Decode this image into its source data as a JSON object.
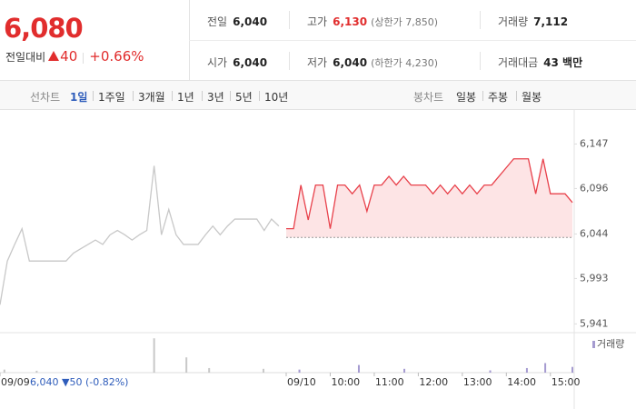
{
  "header": {
    "price": "6,080",
    "change_label": "전일대비",
    "change": "40",
    "change_rate": "+0.66%"
  },
  "stats": [
    [
      {
        "label": "전일",
        "value": "6,040"
      },
      {
        "label": "고가",
        "value": "6,130",
        "extra": "(상한가 7,850)"
      },
      {
        "label": "거래량",
        "value": "7,112"
      }
    ],
    [
      {
        "label": "시가",
        "value": "6,040"
      },
      {
        "label": "저가",
        "value": "6,040",
        "extra": "(하한가 4,230)"
      },
      {
        "label": "거래대금",
        "value": "43 백만"
      }
    ]
  ],
  "tabs": {
    "line_label": "선차트",
    "line_periods": [
      "1일",
      "1주일",
      "3개월",
      "1년",
      "3년",
      "5년",
      "10년"
    ],
    "selected": 0,
    "candle_label": "봉차트",
    "candle_periods": [
      "일봉",
      "주봉",
      "월봉"
    ]
  },
  "chart_data": {
    "type": "line",
    "series": [
      {
        "color": "#c8c8c8",
        "x": [
          0,
          10,
          20,
          30,
          40,
          50,
          60,
          70,
          80,
          90,
          100,
          110,
          120,
          130,
          140,
          150,
          160,
          170,
          180,
          190,
          200,
          210,
          220,
          230,
          240,
          250,
          260,
          270,
          280,
          290,
          300,
          310,
          320,
          330,
          340,
          350,
          360,
          370,
          380
        ],
        "values": [
          5963,
          6013,
          6032,
          6050,
          6013,
          6013,
          6013,
          6013,
          6013,
          6013,
          6022,
          6027,
          6032,
          6037,
          6032,
          6043,
          6048,
          6043,
          6037,
          6043,
          6048,
          6122,
          6043,
          6072,
          6043,
          6032,
          6032,
          6032,
          6043,
          6053,
          6043,
          6053,
          6061,
          6061,
          6061,
          6061,
          6048,
          6061,
          6053
        ]
      },
      {
        "color": "#e8414b",
        "fill": "#fde4e5",
        "x": [
          390,
          400,
          410,
          420,
          430,
          440,
          450,
          460,
          470,
          480,
          490,
          500,
          510,
          520,
          530,
          540,
          550,
          560,
          570,
          580,
          590,
          600,
          610,
          620,
          630,
          640,
          650,
          660,
          670,
          680,
          690,
          700,
          710,
          720,
          730,
          740,
          750,
          760,
          770,
          780
        ],
        "values": [
          6050,
          6050,
          6100,
          6060,
          6100,
          6100,
          6050,
          6100,
          6100,
          6090,
          6100,
          6070,
          6100,
          6100,
          6110,
          6100,
          6110,
          6100,
          6100,
          6100,
          6090,
          6100,
          6090,
          6100,
          6090,
          6100,
          6090,
          6100,
          6100,
          6110,
          6120,
          6130,
          6130,
          6130,
          6090,
          6130,
          6090,
          6090,
          6090,
          6080
        ]
      }
    ],
    "baseline": 6040,
    "xlim": [
      0,
      780
    ],
    "xticks": [
      {
        "value": 0,
        "label": "09/09"
      },
      {
        "value": 390,
        "label": "09/10"
      },
      {
        "value": 450,
        "label": "10:00"
      },
      {
        "value": 510,
        "label": "11:00"
      },
      {
        "value": 570,
        "label": "12:00"
      },
      {
        "value": 630,
        "label": "13:00"
      },
      {
        "value": 690,
        "label": "14:00"
      },
      {
        "value": 750,
        "label": "15:00"
      }
    ],
    "ylim": [
      5932,
      6187
    ],
    "yticks": [
      {
        "value": 6147,
        "label": "6,147"
      },
      {
        "value": 6096,
        "label": "6,096"
      },
      {
        "value": 6044,
        "label": "6,044"
      },
      {
        "value": 5993,
        "label": "5,993"
      },
      {
        "value": 5941,
        "label": "5,941"
      }
    ],
    "prev_note": "6,040 ▼50 (-0.82%)",
    "volume": {
      "name": "거래량",
      "colors": [
        "#c8c8c8",
        "#a59bd0"
      ],
      "ylim": [
        0,
        100
      ],
      "x": [
        6,
        50,
        210,
        254,
        285,
        359,
        408,
        489,
        551,
        668,
        718,
        743,
        780
      ],
      "values": [
        8,
        5,
        90,
        40,
        12,
        10,
        8,
        20,
        10,
        6,
        12,
        25,
        15
      ]
    }
  }
}
